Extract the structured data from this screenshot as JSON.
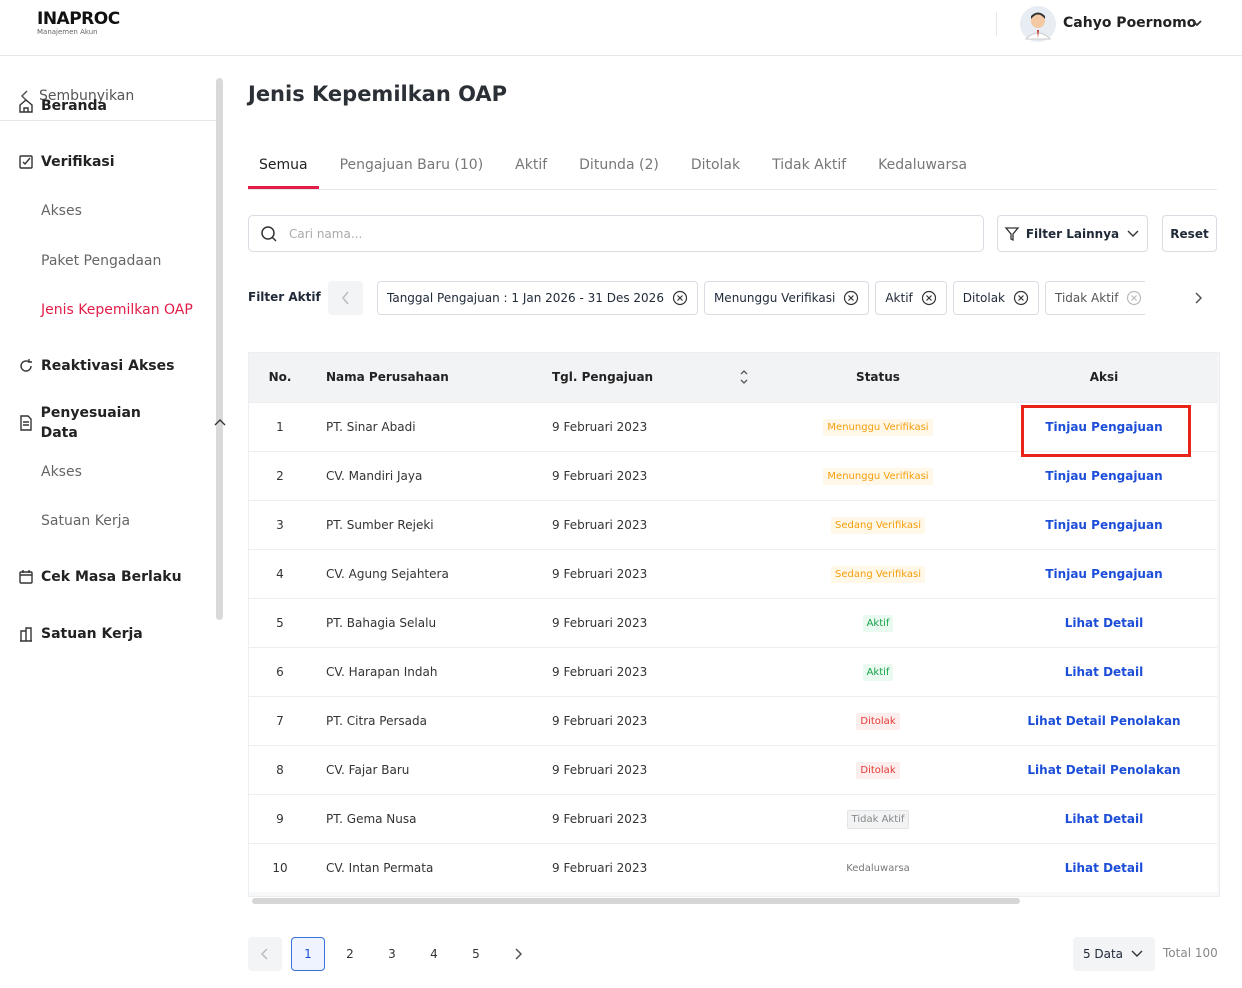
{
  "header": {
    "logo": "INAPROC",
    "logo_subtitle": "Manajemen Akun",
    "user_name": "Cahyo Poernomo"
  },
  "sidebar": {
    "hide_label": "Sembunyikan",
    "menu": [
      {
        "label": "Beranda"
      },
      {
        "label": "Verifikasi",
        "children": [
          "Akses",
          "Paket Pengadaan",
          "Jenis Kepemilkan OAP"
        ]
      },
      {
        "label": "Reaktivasi Akses"
      },
      {
        "label": "Penyesuaian Data",
        "children": [
          "Akses",
          "Satuan Kerja"
        ]
      },
      {
        "label": "Cek Masa Berlaku"
      },
      {
        "label": "Satuan Kerja"
      }
    ]
  },
  "page_title": "Jenis Kepemilkan OAP",
  "tabs": [
    "Semua",
    "Pengajuan Baru (10)",
    "Aktif",
    "Ditunda (2)",
    "Ditolak",
    "Tidak Aktif",
    "Kedaluwarsa"
  ],
  "toolbar": {
    "search_placeholder": "Cari nama...",
    "filter_button": "Filter Lainnya",
    "reset_button": "Reset"
  },
  "active_filters": {
    "label": "Filter Aktif",
    "chips": [
      "Tanggal Pengajuan : 1 Jan 2026 - 31 Des 2026",
      "Menunggu Verifikasi",
      "Aktif",
      "Ditolak",
      "Tidak Aktif"
    ]
  },
  "table": {
    "headers": [
      "No.",
      "Nama Perusahaan",
      "Tgl. Pengajuan",
      "Status",
      "Aksi"
    ],
    "rows": [
      [
        1,
        "PT. Sinar Abadi",
        "9 Februari 2023",
        "Menunggu Verifikasi",
        "Tinjau Pengajuan"
      ],
      [
        2,
        "CV. Mandiri Jaya",
        "9 Februari 2023",
        "Menunggu Verifikasi",
        "Tinjau Pengajuan"
      ],
      [
        3,
        "PT. Sumber Rejeki",
        "9 Februari 2023",
        "Sedang Verifikasi",
        "Tinjau Pengajuan"
      ],
      [
        4,
        "CV. Agung Sejahtera",
        "9 Februari 2023",
        "Sedang Verifikasi",
        "Tinjau Pengajuan"
      ],
      [
        5,
        "PT. Bahagia Selalu",
        "9 Februari 2023",
        "Aktif",
        "Lihat Detail"
      ],
      [
        6,
        "CV. Harapan Indah",
        "9 Februari 2023",
        "Aktif",
        "Lihat Detail"
      ],
      [
        7,
        "PT. Citra Persada",
        "9 Februari 2023",
        "Ditolak",
        "Lihat Detail Penolakan"
      ],
      [
        8,
        "CV. Fajar Baru",
        "9 Februari 2023",
        "Ditolak",
        "Lihat Detail Penolakan"
      ],
      [
        9,
        "PT. Gema Nusa",
        "9 Februari 2023",
        "Tidak Aktif",
        "Lihat Detail"
      ],
      [
        10,
        "CV. Intan Permata",
        "9 Februari 2023",
        "Kedaluwarsa",
        "Lihat Detail"
      ]
    ]
  },
  "pagination": {
    "pages": [
      1,
      2,
      3,
      4,
      5
    ],
    "page_size": "5 Data",
    "total": "Total 100"
  }
}
